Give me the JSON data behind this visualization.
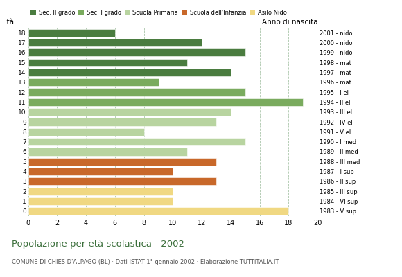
{
  "ages": [
    18,
    17,
    16,
    15,
    14,
    13,
    12,
    11,
    10,
    9,
    8,
    7,
    6,
    5,
    4,
    3,
    2,
    1,
    0
  ],
  "values": [
    6,
    12,
    15,
    11,
    14,
    9,
    15,
    19,
    14,
    13,
    8,
    15,
    11,
    13,
    10,
    13,
    10,
    10,
    18
  ],
  "anno_nascita": [
    "1983 - V sup",
    "1984 - VI sup",
    "1985 - III sup",
    "1986 - II sup",
    "1987 - I sup",
    "1988 - III med",
    "1989 - II med",
    "1990 - I med",
    "1991 - V el",
    "1992 - IV el",
    "1993 - III el",
    "1994 - II el",
    "1995 - I el",
    "1996 - mat",
    "1997 - mat",
    "1998 - mat",
    "1999 - nido",
    "2000 - nido",
    "2001 - nido"
  ],
  "bar_colors": [
    "#4a7c3f",
    "#4a7c3f",
    "#4a7c3f",
    "#4a7c3f",
    "#4a7c3f",
    "#7aab5e",
    "#7aab5e",
    "#7aab5e",
    "#b8d4a0",
    "#b8d4a0",
    "#b8d4a0",
    "#b8d4a0",
    "#b8d4a0",
    "#c8682a",
    "#c8682a",
    "#c8682a",
    "#f0d882",
    "#f0d882",
    "#f0d882"
  ],
  "legend_labels": [
    "Sec. II grado",
    "Sec. I grado",
    "Scuola Primaria",
    "Scuola dell'Infanzia",
    "Asilo Nido"
  ],
  "legend_colors": [
    "#4a7c3f",
    "#7aab5e",
    "#b8d4a0",
    "#c8682a",
    "#f0d882"
  ],
  "title": "Popolazione per età scolastica - 2002",
  "subtitle": "COMUNE DI CHIES D'ALPAGO (BL) · Dati ISTAT 1° gennaio 2002 · Elaborazione TUTTITALIA.IT",
  "eta_label": "Età",
  "anno_label": "Anno di nascita",
  "xlim": [
    0,
    20
  ],
  "xticks": [
    0,
    2,
    4,
    6,
    8,
    10,
    12,
    14,
    16,
    18,
    20
  ],
  "bg_color": "#ffffff",
  "grid_color": "#a0bfa0",
  "bar_height": 0.78
}
